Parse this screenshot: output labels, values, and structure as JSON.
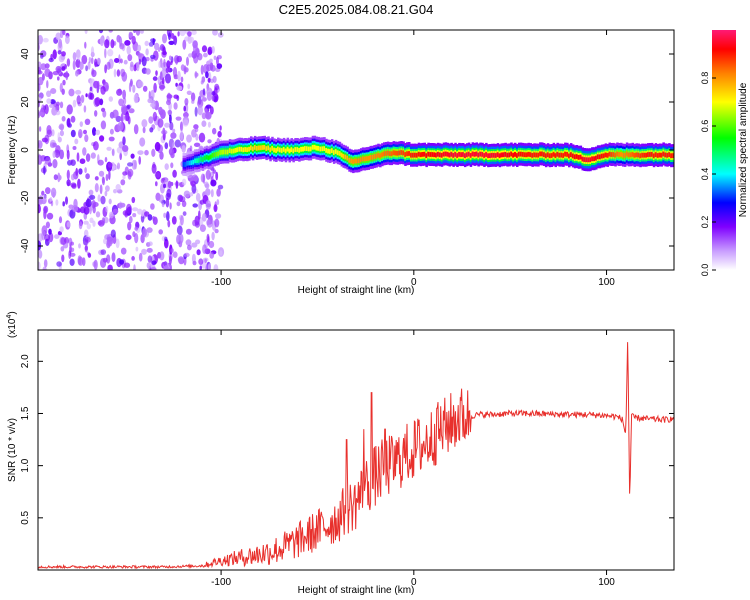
{
  "title": "C2E5.2025.084.08.21.G04",
  "colors": {
    "snr_line": "#e8302c",
    "low_noise": "#8a2be2",
    "colorbar": [
      "#ffffff",
      "#c89cff",
      "#7f00ff",
      "#0000ff",
      "#00ffff",
      "#00ff00",
      "#ffff00",
      "#ff8000",
      "#ff0000",
      "#ff1a75"
    ]
  },
  "chart_data": [
    {
      "type": "heatmap",
      "title": "C2E5.2025.084.08.21.G04",
      "xlabel": "Height of straight line (km)",
      "ylabel": "Frequency (Hz)",
      "xlim": [
        -195,
        135
      ],
      "ylim": [
        -50,
        50
      ],
      "x_ticks": [
        -100,
        0,
        100
      ],
      "x_ticklabels": [
        "-100",
        "0",
        "100"
      ],
      "y_ticks": [
        -40,
        -20,
        0,
        20,
        40
      ],
      "y_ticklabels": [
        "-40",
        "-20",
        "0",
        "20",
        "40"
      ],
      "colorbar": {
        "label": "Normalized spectral amplitude",
        "range": [
          0,
          1
        ],
        "ticks": [
          0.0,
          0.2,
          0.4,
          0.6,
          0.8
        ],
        "ticklabels": [
          "0.0",
          "0.2",
          "0.4",
          "0.6",
          "0.8"
        ]
      },
      "noise_region": {
        "x_range": [
          -195,
          -100
        ],
        "y_range": [
          -50,
          50
        ],
        "amplitude": 0.15
      },
      "ridge": [
        {
          "x": -120,
          "y": -6,
          "amp": 0.3
        },
        {
          "x": -110,
          "y": -4,
          "amp": 0.5
        },
        {
          "x": -100,
          "y": -1,
          "amp": 0.65
        },
        {
          "x": -90,
          "y": 0,
          "amp": 0.7
        },
        {
          "x": -80,
          "y": 1,
          "amp": 0.75
        },
        {
          "x": -70,
          "y": 0,
          "amp": 0.7
        },
        {
          "x": -60,
          "y": 0,
          "amp": 0.7
        },
        {
          "x": -50,
          "y": 1,
          "amp": 0.7
        },
        {
          "x": -40,
          "y": -1,
          "amp": 0.7
        },
        {
          "x": -32,
          "y": -5,
          "amp": 0.8
        },
        {
          "x": -22,
          "y": -3,
          "amp": 0.8
        },
        {
          "x": -10,
          "y": -1,
          "amp": 0.85
        },
        {
          "x": 0,
          "y": -2,
          "amp": 0.9
        },
        {
          "x": 20,
          "y": -2,
          "amp": 0.95
        },
        {
          "x": 40,
          "y": -2,
          "amp": 0.95
        },
        {
          "x": 60,
          "y": -2,
          "amp": 0.9
        },
        {
          "x": 80,
          "y": -2,
          "amp": 0.9
        },
        {
          "x": 90,
          "y": -4,
          "amp": 0.95
        },
        {
          "x": 100,
          "y": -2,
          "amp": 0.9
        },
        {
          "x": 108,
          "y": -2,
          "amp": 0.8
        },
        {
          "x": 120,
          "y": -2,
          "amp": 0.9
        },
        {
          "x": 135,
          "y": -2,
          "amp": 0.9
        }
      ]
    },
    {
      "type": "line",
      "xlabel": "Height of straight line (km)",
      "ylabel": "SNR (10 * v/v)",
      "multiplier_label": "(x10",
      "multiplier_exponent": "4",
      "xlim": [
        -195,
        135
      ],
      "ylim": [
        0,
        23000
      ],
      "x_ticks": [
        -100,
        0,
        100
      ],
      "x_ticklabels": [
        "-100",
        "0",
        "100"
      ],
      "y_ticks": [
        5000,
        10000,
        15000,
        20000
      ],
      "y_ticklabels": [
        "0.5",
        "1.0",
        "1.5",
        "2.0"
      ],
      "series": [
        {
          "x": [
            -195,
            -160,
            -130,
            -110,
            -100,
            -90,
            -80,
            -70,
            -60,
            -50,
            -40,
            -35,
            -30,
            -25,
            -20,
            -15,
            -10,
            -5,
            0,
            5,
            10,
            15,
            20,
            25,
            30,
            35,
            40,
            50,
            60,
            70,
            80,
            90,
            100,
            105,
            108,
            110,
            111,
            112,
            113,
            115,
            120,
            130,
            135
          ],
          "y": [
            300,
            300,
            300,
            400,
            900,
            1200,
            1500,
            2000,
            2800,
            3800,
            4800,
            5800,
            6500,
            8000,
            9000,
            9800,
            10200,
            11000,
            11500,
            12000,
            12800,
            13500,
            14200,
            14700,
            14800,
            14900,
            14900,
            15000,
            15000,
            14950,
            14900,
            14900,
            14800,
            14700,
            14500,
            13000,
            22800,
            6500,
            14700,
            14600,
            14500,
            14400,
            14500
          ],
          "spikes": [
            {
              "x": -22,
              "y": 17000
            },
            {
              "x": -26,
              "y": 13500
            },
            {
              "x": -35,
              "y": 12500
            },
            {
              "x": -15,
              "y": 13500
            },
            {
              "x": 2,
              "y": 14500
            },
            {
              "x": 12,
              "y": 15500
            },
            {
              "x": 23,
              "y": 15800
            }
          ]
        }
      ]
    }
  ]
}
